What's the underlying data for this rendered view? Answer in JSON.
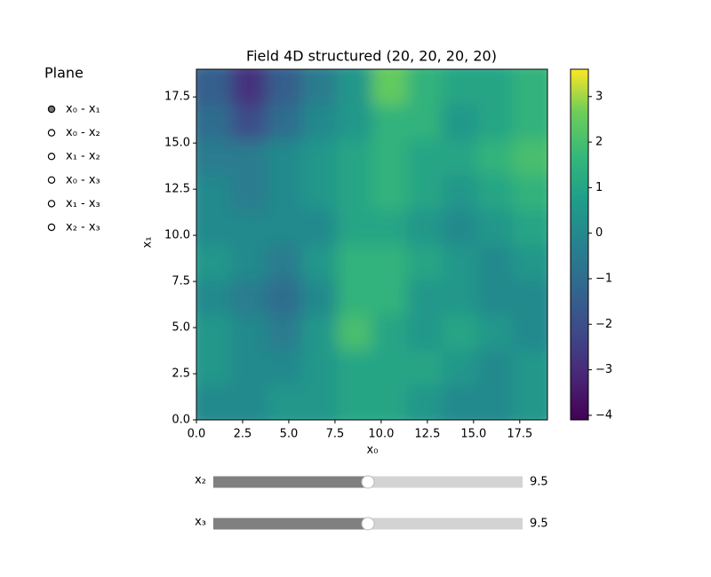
{
  "chart_data": {
    "type": "heatmap",
    "title": "Field 4D structured (20, 20, 20, 20)",
    "xlabel": "x₀",
    "ylabel": "x₁",
    "x": [
      0.95,
      2.85,
      4.75,
      6.65,
      8.55,
      10.45,
      12.35,
      14.25,
      16.15,
      18.05
    ],
    "y": [
      0.95,
      2.85,
      4.75,
      6.65,
      8.55,
      10.45,
      12.35,
      14.25,
      16.15,
      18.05
    ],
    "z": [
      [
        0,
        0,
        0.5,
        0.5,
        1,
        1,
        0.5,
        0,
        0,
        0.5
      ],
      [
        0.5,
        0,
        0,
        0.5,
        1,
        1,
        1,
        0.5,
        0,
        0.5
      ],
      [
        0.5,
        0,
        -0.5,
        0.5,
        2,
        1,
        0.5,
        1,
        0.5,
        0
      ],
      [
        0,
        -0.5,
        -1,
        0,
        1.5,
        1.5,
        0.5,
        0.5,
        0,
        0
      ],
      [
        0.5,
        0,
        -0.5,
        0.5,
        1.5,
        1.5,
        1,
        0.5,
        0,
        0.5
      ],
      [
        0,
        0,
        0,
        0,
        1,
        1,
        0.5,
        0,
        0.5,
        1
      ],
      [
        0,
        -0.5,
        0,
        0.5,
        1,
        1.5,
        1,
        0.5,
        1,
        1.5
      ],
      [
        -0.5,
        -0.5,
        0,
        0.5,
        1,
        1.5,
        1,
        1,
        1.5,
        2
      ],
      [
        -1,
        -2,
        -1,
        0,
        0.5,
        1.5,
        1.5,
        0.5,
        1,
        1.5
      ],
      [
        -1.5,
        -2.8,
        -1.5,
        -0.5,
        0.5,
        2.5,
        1.5,
        1,
        1,
        1.5
      ]
    ],
    "xlim": [
      0,
      19
    ],
    "ylim": [
      0,
      19
    ],
    "xticks": [
      {
        "value": 0,
        "label": "0.0"
      },
      2.5,
      {
        "value": 5,
        "label": "5.0"
      },
      7.5,
      {
        "value": 10,
        "label": "10.0"
      },
      12.5,
      {
        "value": 15,
        "label": "15.0"
      },
      17.5
    ],
    "yticks": [
      {
        "value": 0,
        "label": "0.0"
      },
      2.5,
      {
        "value": 5,
        "label": "5.0"
      },
      7.5,
      {
        "value": 10,
        "label": "10.0"
      },
      12.5,
      {
        "value": 15,
        "label": "15.0"
      },
      17.5
    ],
    "colormap": "viridis",
    "colorbar": {
      "lim": [
        -4.1,
        3.6
      ],
      "ticks": [
        {
          "value": -4,
          "label": "−4"
        },
        {
          "value": -3,
          "label": "−3"
        },
        {
          "value": -2,
          "label": "−2"
        },
        {
          "value": -1,
          "label": "−1"
        },
        0,
        1,
        2,
        3
      ]
    }
  },
  "radio": {
    "title": "Plane",
    "options": [
      "x₀ - x₁",
      "x₀ - x₂",
      "x₁ - x₂",
      "x₀ - x₃",
      "x₁ - x₃",
      "x₂ - x₃"
    ],
    "selected": 0
  },
  "sliders": [
    {
      "label": "x₂",
      "value": 9.5,
      "range": [
        0,
        19
      ]
    },
    {
      "label": "x₃",
      "value": 9.5,
      "range": [
        0,
        19
      ]
    }
  ]
}
